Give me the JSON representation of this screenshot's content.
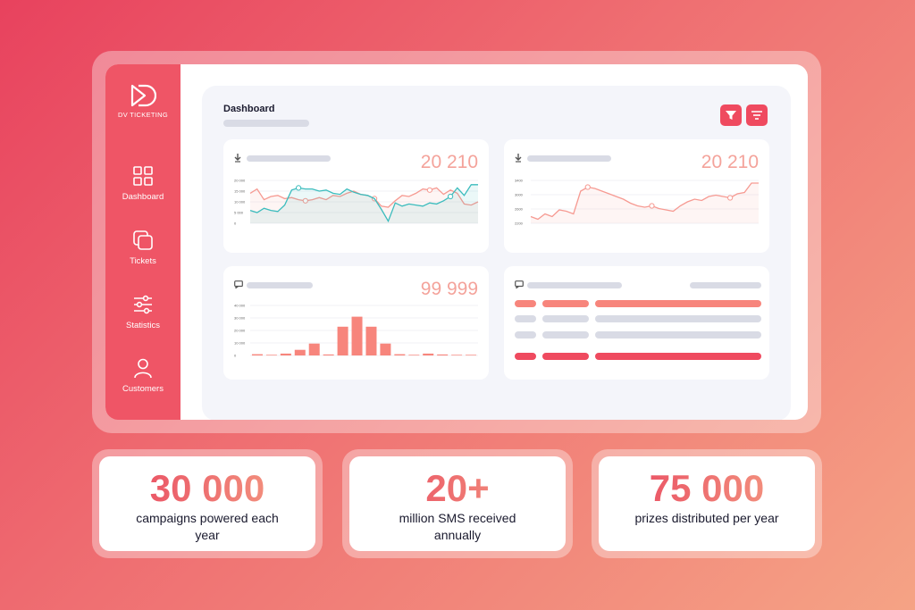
{
  "sidebar": {
    "logo_text": "DV TICKETING",
    "items": [
      {
        "label": "Dashboard",
        "icon": "grid-icon"
      },
      {
        "label": "Tickets",
        "icon": "copy-icon"
      },
      {
        "label": "Statistics",
        "icon": "sliders-icon"
      },
      {
        "label": "Customers",
        "icon": "user-icon"
      }
    ]
  },
  "header": {
    "title": "Dashboard"
  },
  "cards": {
    "line1": {
      "value": "20 210",
      "yticks": [
        "20 000",
        "15 000",
        "10 000",
        "5 000",
        "0"
      ]
    },
    "line2": {
      "value": "20 210",
      "yticks": [
        "3400",
        "3000",
        "2600",
        "2200"
      ]
    },
    "bar": {
      "value": "99 999",
      "yticks": [
        "40 000",
        "30 000",
        "20 000",
        "10 000",
        "0"
      ]
    }
  },
  "chart_data": [
    {
      "type": "line",
      "series": [
        {
          "values": [
            14000,
            16000,
            11000,
            12500,
            13000,
            11500,
            12000,
            11000,
            10500,
            11000,
            12000,
            11000,
            13000,
            12500,
            14000,
            15000,
            13500,
            13000,
            11500,
            8000,
            7500,
            10500,
            13000,
            12500,
            14000,
            16000,
            15500,
            16500,
            13500,
            15500,
            14000,
            9000,
            8500,
            10000
          ]
        },
        {
          "values": [
            6000,
            5000,
            7000,
            6000,
            5500,
            8500,
            15500,
            16500,
            16000,
            16000,
            15000,
            15500,
            14000,
            13500,
            16000,
            14500,
            13500,
            13000,
            11500,
            6500,
            1000,
            9500,
            8000,
            9000,
            8500,
            8000,
            9500,
            9000,
            10500,
            12500,
            16500,
            13000,
            18000,
            18000
          ]
        }
      ],
      "ylim": [
        0,
        20000
      ]
    },
    {
      "type": "line",
      "series": [
        {
          "values": [
            2250,
            2150,
            2350,
            2250,
            2500,
            2450,
            2350,
            3200,
            3350,
            3300,
            3200,
            3100,
            3000,
            2900,
            2750,
            2650,
            2600,
            2650,
            2550,
            2500,
            2450,
            2650,
            2800,
            2900,
            2850,
            3000,
            3050,
            3000,
            2950,
            3100,
            3150,
            3500,
            3500
          ]
        }
      ],
      "ylim": [
        2000,
        3600
      ]
    },
    {
      "type": "bar",
      "values": [
        1000,
        500,
        1500,
        4500,
        9500,
        800,
        23000,
        31000,
        23000,
        9500,
        1000,
        500,
        1500,
        800,
        500,
        500
      ],
      "ylim": [
        0,
        40000
      ]
    }
  ],
  "stats": [
    {
      "number": "30 000",
      "text": "campaigns powered each year"
    },
    {
      "number": "20+",
      "text": "million SMS received annually"
    },
    {
      "number": "75 000",
      "text": "prizes distributed per year"
    }
  ],
  "colors": {
    "accent": "#ef4a5f",
    "teal": "#3bbcbd",
    "salmon": "#f69a92"
  }
}
